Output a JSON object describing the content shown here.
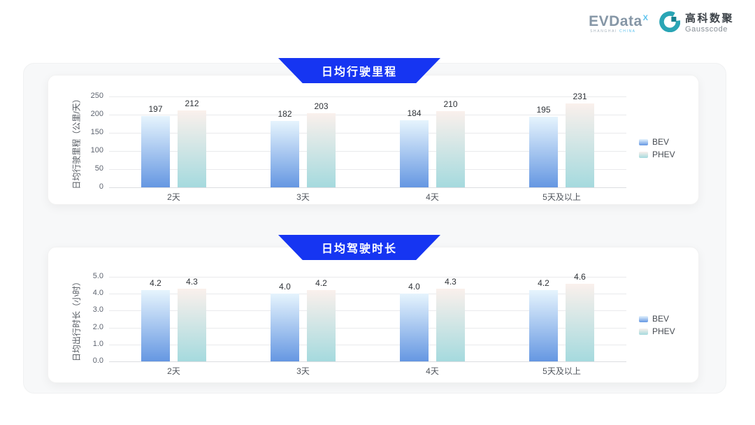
{
  "header": {
    "evdata": {
      "name": "EVData",
      "sup": "X",
      "sub_left": "SHANGHAI",
      "sub_right": "CHINA"
    },
    "gausscode": {
      "cn": "高科数聚",
      "en": "Gausscode"
    }
  },
  "colors": {
    "banner_blue": "#1635f2",
    "bev_gradient_top": "#e6f4fd",
    "bev_gradient_bottom": "#6597e2",
    "phev_gradient_top": "#faf0ec",
    "phev_gradient_bottom": "#a5dade",
    "gausscode_teal": "#2aa5b5",
    "gausscode_dark_teal": "#17818f",
    "evdata_blue": "#5bc2ee"
  },
  "chart_data": [
    {
      "type": "bar",
      "title": "日均行驶里程",
      "ylabel": "日均行驶里程（公里/天）",
      "ylim": [
        0,
        250
      ],
      "ytick_labels": [
        "0",
        "50",
        "100",
        "150",
        "200",
        "250"
      ],
      "categories": [
        "2天",
        "3天",
        "4天",
        "5天及以上"
      ],
      "series": [
        {
          "name": "BEV",
          "values": [
            197,
            182,
            184,
            195
          ]
        },
        {
          "name": "PHEV",
          "values": [
            212,
            203,
            210,
            231
          ]
        }
      ],
      "decimals": 0,
      "grid": true,
      "legend_position": "right"
    },
    {
      "type": "bar",
      "title": "日均驾驶时长",
      "ylabel": "日均出行时长（小时）",
      "ylim": [
        0,
        5
      ],
      "ytick_labels": [
        "0.0",
        "1.0",
        "2.0",
        "3.0",
        "4.0",
        "5.0"
      ],
      "categories": [
        "2天",
        "3天",
        "4天",
        "5天及以上"
      ],
      "series": [
        {
          "name": "BEV",
          "values": [
            4.2,
            4.0,
            4.0,
            4.2
          ]
        },
        {
          "name": "PHEV",
          "values": [
            4.3,
            4.2,
            4.3,
            4.6
          ]
        }
      ],
      "decimals": 1,
      "grid": true,
      "legend_position": "right"
    }
  ]
}
